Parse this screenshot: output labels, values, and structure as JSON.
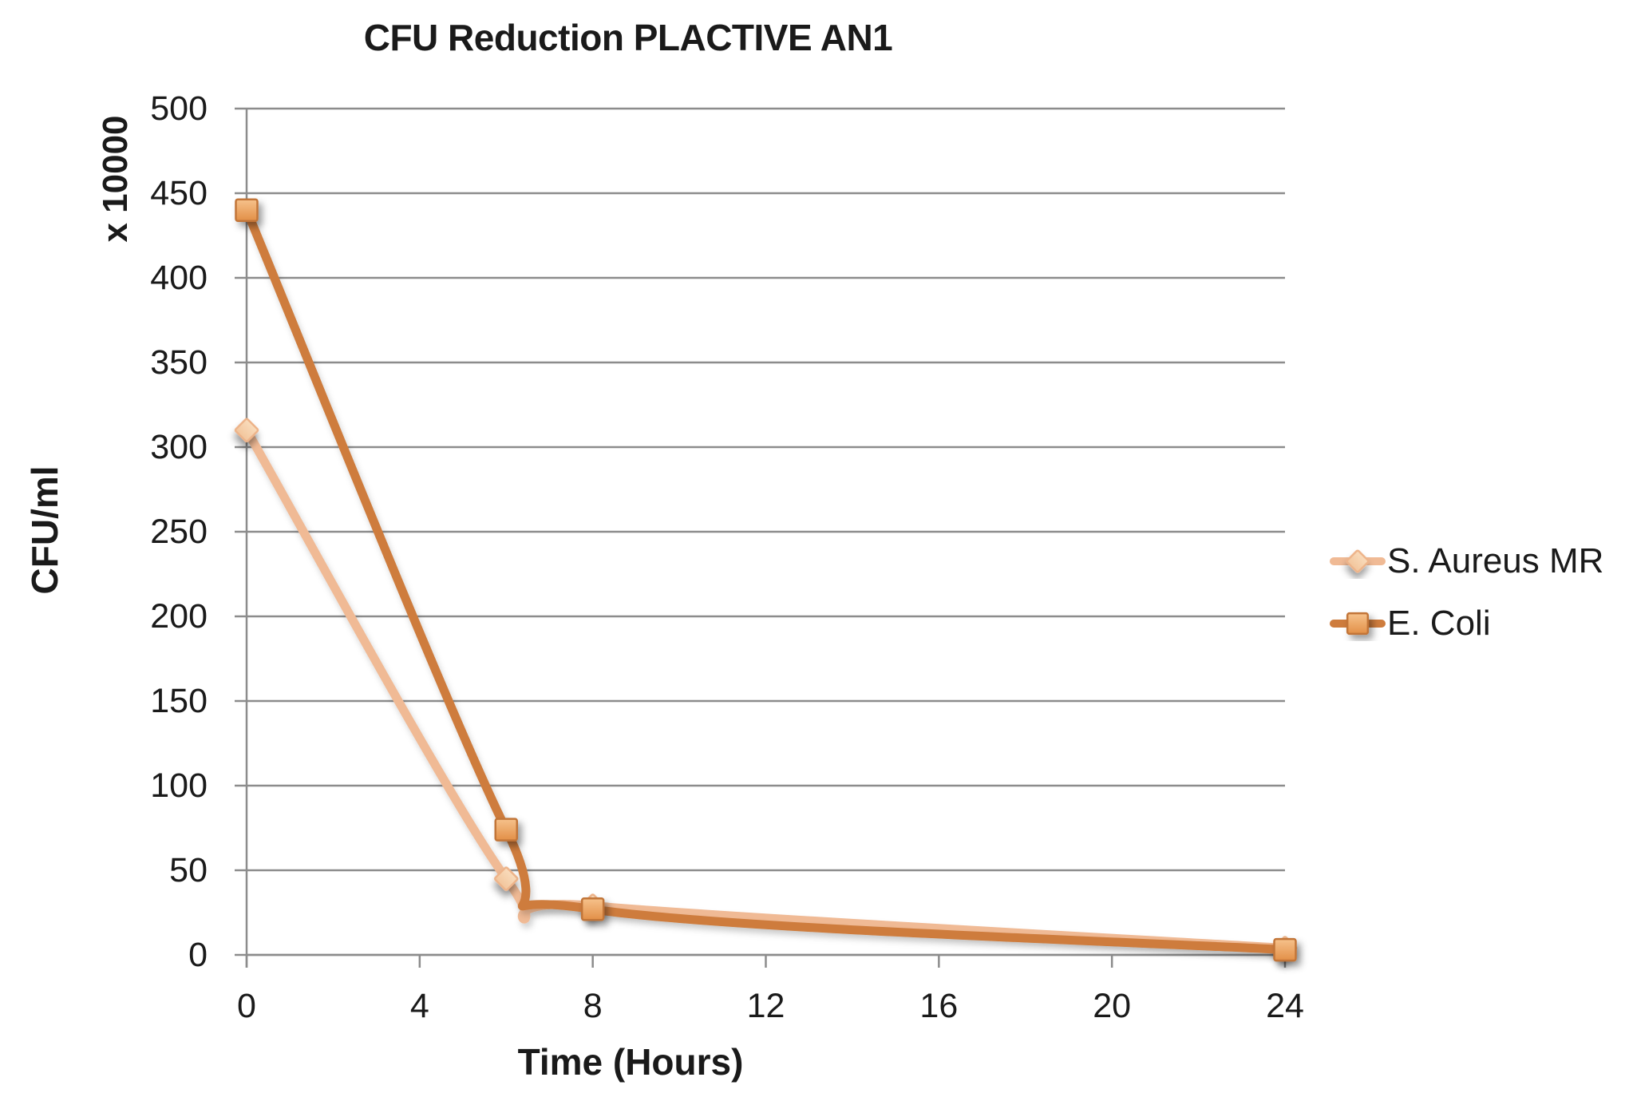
{
  "chart_data": {
    "type": "line",
    "title": "CFU Reduction PLACTIVE AN1",
    "xlabel": "Time (Hours)",
    "ylabel": "CFU/ml",
    "y_axis_unit": "x 10000",
    "x": [
      0,
      6,
      8,
      24
    ],
    "series": [
      {
        "name": "S. Aureus MR",
        "marker": "diamond",
        "line_color": "#F0BA95",
        "marker_fill_top": "#F9DCBC",
        "marker_fill_bottom": "#F2C59C",
        "marker_stroke": "#EDB389",
        "values": [
          310,
          45,
          29,
          4
        ]
      },
      {
        "name": "E. Coli",
        "marker": "square",
        "line_color": "#CE7C3D",
        "marker_fill_top": "#F6C28C",
        "marker_fill_bottom": "#E28F47",
        "marker_stroke": "#C27437",
        "values": [
          440,
          74,
          27,
          3
        ]
      }
    ],
    "x_ticks": [
      0,
      4,
      8,
      12,
      16,
      20,
      24
    ],
    "y_ticks": [
      0,
      50,
      100,
      150,
      200,
      250,
      300,
      350,
      400,
      450,
      500
    ],
    "xlim": [
      0,
      24
    ],
    "ylim": [
      0,
      500
    ],
    "grid": true,
    "smooth_lines": true,
    "gridline_color": "#8C8C8C",
    "axis_color": "#8C8C8C",
    "text_color": "#1A1A1A",
    "legend_position": "right"
  }
}
